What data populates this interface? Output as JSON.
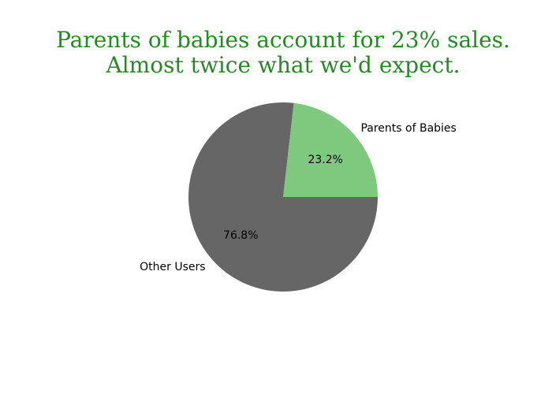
{
  "chart_data": {
    "type": "pie",
    "title_lines": [
      "Parents of babies account for 23% sales.",
      "Almost twice what we'd expect."
    ],
    "title_color": "#228b22",
    "categories": [
      "Parents of Babies",
      "Other Users"
    ],
    "values": [
      23.2,
      76.8
    ],
    "percent_labels": [
      "23.2%",
      "76.8%"
    ],
    "colors": [
      "#7fc97f",
      "#666666"
    ],
    "start_angle_deg": 0,
    "direction": "counterclockwise",
    "legend": "none"
  }
}
